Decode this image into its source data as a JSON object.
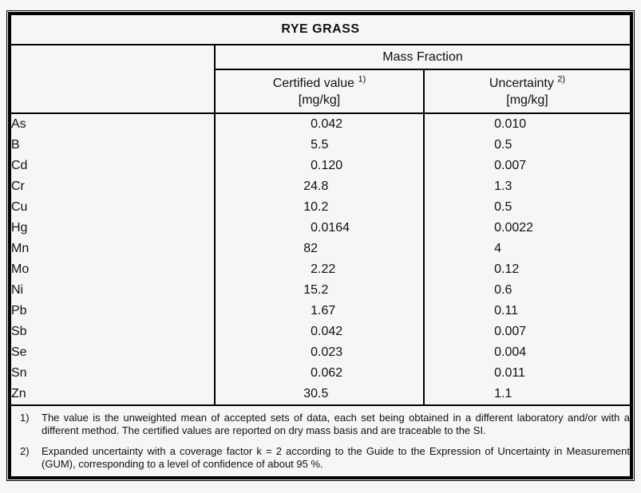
{
  "title": "RYE GRASS",
  "table": {
    "group_header": "Mass Fraction",
    "columns": [
      {
        "label": "Certified value",
        "sup": "1)",
        "unit": "[mg/kg]"
      },
      {
        "label": "Uncertainty",
        "sup": "2)",
        "unit": "[mg/kg]"
      }
    ],
    "rows": [
      {
        "element": "As",
        "certified": "0.042",
        "uncertainty": "0.010"
      },
      {
        "element": "B",
        "certified": "5.5",
        "uncertainty": "0.5"
      },
      {
        "element": "Cd",
        "certified": "0.120",
        "uncertainty": "0.007"
      },
      {
        "element": "Cr",
        "certified": "24.8",
        "uncertainty": "1.3"
      },
      {
        "element": "Cu",
        "certified": "10.2",
        "uncertainty": "0.5"
      },
      {
        "element": "Hg",
        "certified": "0.0164",
        "uncertainty": "0.0022"
      },
      {
        "element": "Mn",
        "certified": "82",
        "uncertainty": "4"
      },
      {
        "element": "Mo",
        "certified": "2.22",
        "uncertainty": "0.12"
      },
      {
        "element": "Ni",
        "certified": "15.2",
        "uncertainty": "0.6"
      },
      {
        "element": "Pb",
        "certified": "1.67",
        "uncertainty": "0.11"
      },
      {
        "element": "Sb",
        "certified": "0.042",
        "uncertainty": "0.007"
      },
      {
        "element": "Se",
        "certified": "0.023",
        "uncertainty": "0.004"
      },
      {
        "element": "Sn",
        "certified": "0.062",
        "uncertainty": "0.011"
      },
      {
        "element": "Zn",
        "certified": "30.5",
        "uncertainty": "1.1"
      }
    ]
  },
  "footnotes": [
    {
      "marker": "1)",
      "text": "The value is the unweighted mean of accepted sets of data, each set being obtained in a different laboratory and/or with a different method. The certified values are reported on dry mass basis and are traceable to the SI."
    },
    {
      "marker": "2)",
      "text": "Expanded uncertainty with a coverage factor k = 2 according to the Guide to the Expression of Uncertainty in Measurement (GUM), corresponding to a level of confidence of about 95 %."
    }
  ],
  "colors": {
    "border": "#000000",
    "background": "#f6f6f6",
    "text": "#111111"
  }
}
